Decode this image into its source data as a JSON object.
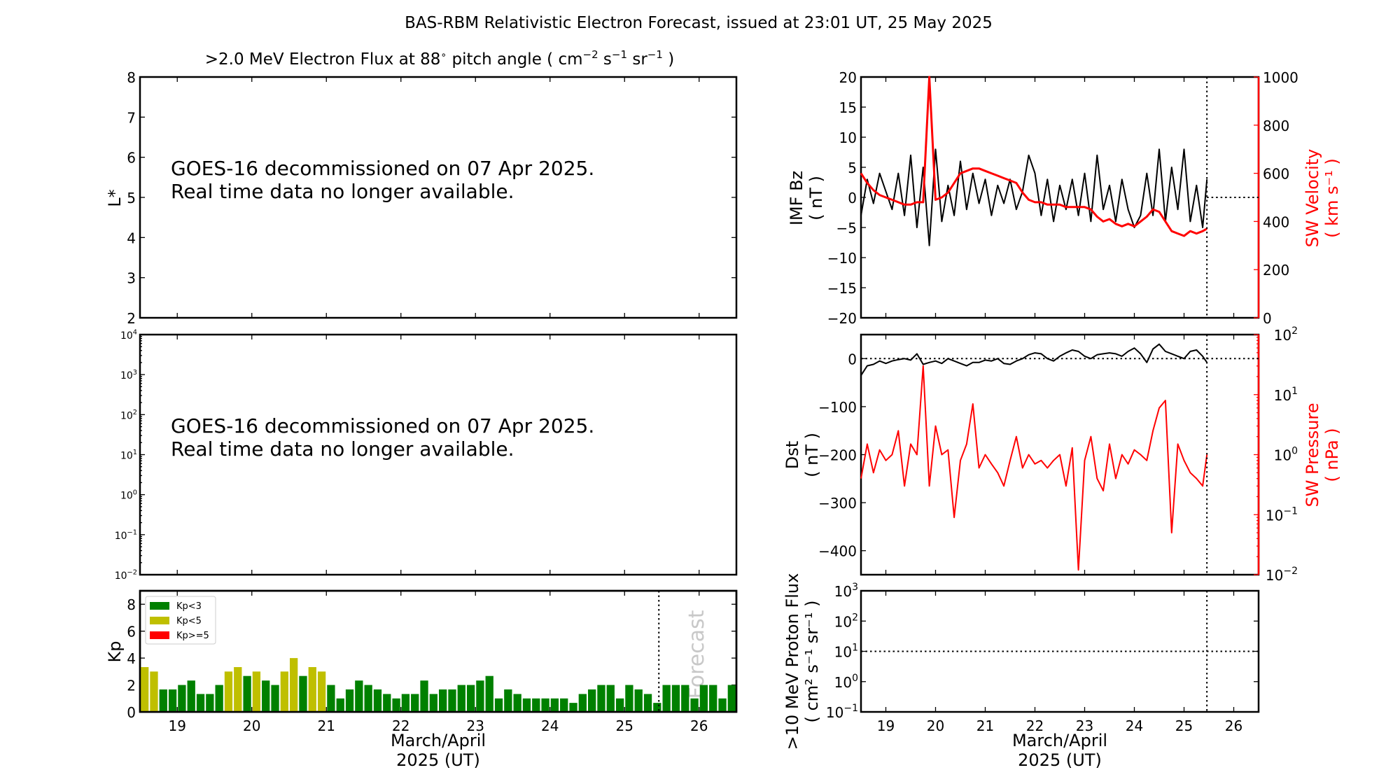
{
  "title": "BAS-RBM Relativistic Electron Forecast, issued at 23:01 UT, 25 May 2025",
  "colors": {
    "kp_low": "#008000",
    "kp_mid": "#bfbf00",
    "kp_high": "#ff0000",
    "secondary_axis": "#ff0000",
    "forecast_text": "#c8c8c8"
  },
  "xaxis": {
    "range": [
      18.5,
      26.5
    ],
    "ticks": [
      "19",
      "20",
      "21",
      "22",
      "23",
      "24",
      "25",
      "26"
    ],
    "label_line1": "March/April",
    "label_line2": "2025 (UT)",
    "issue_time": 25.46
  },
  "chart_data": [
    {
      "type": "heatmap",
      "title": ">2.0 MeV Electron Flux at 88° pitch angle ( cm⁻² s⁻¹ sr⁻¹ )",
      "title_parts": {
        "main": ">2.0 MeV Electron Flux at 88",
        "deg": "∘",
        "pa": " pitch angle ( cm",
        "e1": "−2",
        "s": " s",
        "e2": "−1",
        "sr": " sr",
        "e3": "−1",
        "close": " )"
      },
      "ylabel": "L*",
      "ylim": [
        2,
        8
      ],
      "yticks": [
        "2",
        "3",
        "4",
        "5",
        "6",
        "7",
        "8"
      ],
      "message_line1": "GOES-16 decommissioned on 07 Apr 2025.",
      "message_line2": "Real time data no longer available."
    },
    {
      "type": "line",
      "yscale": "log",
      "ylim": [
        0.01,
        10000
      ],
      "yticks_exp": [
        "−2",
        "−1",
        "0",
        "1",
        "2",
        "3",
        "4"
      ],
      "message_line1": "GOES-16 decommissioned on 07 Apr 2025.",
      "message_line2": "Real time data no longer available."
    },
    {
      "type": "bar",
      "ylabel": "Kp",
      "ylim": [
        0,
        9
      ],
      "yticks": [
        "0",
        "2",
        "4",
        "6",
        "8"
      ],
      "legend": {
        "placement": "top-left",
        "entries": [
          "Kp<3",
          "Kp<5",
          "Kp>=5"
        ]
      },
      "forecast_label": "Forecast",
      "x_start": 18.5,
      "bin_days": 0.125,
      "values": [
        3.33,
        3,
        1.67,
        1.67,
        2,
        2.33,
        1.33,
        1.33,
        2,
        3,
        3.33,
        2.67,
        3,
        2.33,
        2,
        3,
        4,
        2.67,
        3.33,
        3,
        2,
        1,
        1.67,
        2.33,
        2,
        1.67,
        1.33,
        1,
        1.33,
        1.33,
        2.33,
        1.33,
        1.67,
        1.67,
        2,
        2,
        2.33,
        2.67,
        1,
        1.67,
        1.33,
        1,
        1,
        1,
        1,
        1,
        0.67,
        1.33,
        1.67,
        2,
        2,
        1,
        2,
        1.67,
        1.33,
        0.67,
        2,
        2,
        2,
        1,
        2,
        2,
        1,
        2
      ]
    },
    {
      "type": "line",
      "ylabel_line1": "IMF Bz",
      "ylabel_line2": "( nT )",
      "ylim": [
        -20,
        20
      ],
      "yticks": [
        "−20",
        "−15",
        "−10",
        "−5",
        "0",
        "5",
        "10",
        "15",
        "20"
      ],
      "y2label_line1": "SW Velocity",
      "y2label_line2": "( km s⁻¹ )",
      "y2lim": [
        0,
        1000
      ],
      "y2ticks": [
        "0",
        "200",
        "400",
        "600",
        "800",
        "1000"
      ],
      "x": [
        18.5,
        18.625,
        18.75,
        18.875,
        19,
        19.125,
        19.25,
        19.375,
        19.5,
        19.625,
        19.75,
        19.875,
        20,
        20.125,
        20.25,
        20.375,
        20.5,
        20.625,
        20.75,
        20.875,
        21,
        21.125,
        21.25,
        21.375,
        21.5,
        21.625,
        21.75,
        21.875,
        22,
        22.125,
        22.25,
        22.375,
        22.5,
        22.625,
        22.75,
        22.875,
        23,
        23.125,
        23.25,
        23.375,
        23.5,
        23.625,
        23.75,
        23.875,
        24,
        24.125,
        24.25,
        24.375,
        24.5,
        24.625,
        24.75,
        24.875,
        25,
        25.125,
        25.25,
        25.375,
        25.46
      ],
      "series": [
        {
          "name": "IMF Bz",
          "color": "#000000",
          "values": [
            -3,
            3,
            -1,
            4,
            1,
            -2,
            4,
            -3,
            7,
            -5,
            5,
            -8,
            8,
            -4,
            2,
            -3,
            6,
            -2,
            4,
            -1,
            3,
            -3,
            2,
            -1,
            3,
            -2,
            1,
            7,
            4,
            -3,
            3,
            -4,
            2,
            -2,
            3,
            -3,
            4,
            -4,
            7,
            -2,
            2,
            -4,
            3,
            -2,
            -5,
            -3,
            4,
            -3,
            8,
            -4,
            5,
            -2,
            8,
            -4,
            2,
            -5,
            3
          ]
        },
        {
          "name": "SW Velocity",
          "color": "#ff0000",
          "axis": "right",
          "values": [
            600,
            560,
            530,
            510,
            500,
            490,
            480,
            470,
            470,
            480,
            480,
            1000,
            490,
            500,
            520,
            560,
            600,
            610,
            620,
            620,
            610,
            600,
            590,
            580,
            570,
            560,
            520,
            490,
            480,
            480,
            470,
            470,
            470,
            460,
            460,
            460,
            460,
            450,
            420,
            400,
            410,
            390,
            380,
            390,
            380,
            400,
            420,
            450,
            440,
            400,
            360,
            350,
            340,
            360,
            350,
            360,
            370
          ]
        }
      ]
    },
    {
      "type": "line",
      "ylabel_line1": "Dst",
      "ylabel_line2": "( nT )",
      "ylim": [
        -450,
        50
      ],
      "yticks": [
        {
          "v": 0,
          "t": "0"
        },
        {
          "v": -100,
          "t": "−100"
        },
        {
          "v": -200,
          "t": "−200"
        },
        {
          "v": -300,
          "t": "−300"
        },
        {
          "v": -400,
          "t": "−400"
        }
      ],
      "y2label_line1": "SW Pressure",
      "y2label_line2": "( nPa )",
      "y2scale": "log",
      "y2lim": [
        0.01,
        100
      ],
      "y2ticks_exp": [
        "−2",
        "−1",
        "0",
        "1",
        "2"
      ],
      "x": [
        18.5,
        18.625,
        18.75,
        18.875,
        19,
        19.125,
        19.25,
        19.375,
        19.5,
        19.625,
        19.75,
        19.875,
        20,
        20.125,
        20.25,
        20.375,
        20.5,
        20.625,
        20.75,
        20.875,
        21,
        21.125,
        21.25,
        21.375,
        21.5,
        21.625,
        21.75,
        21.875,
        22,
        22.125,
        22.25,
        22.375,
        22.5,
        22.625,
        22.75,
        22.875,
        23,
        23.125,
        23.25,
        23.375,
        23.5,
        23.625,
        23.75,
        23.875,
        24,
        24.125,
        24.25,
        24.375,
        24.5,
        24.625,
        24.75,
        24.875,
        25,
        25.125,
        25.25,
        25.375,
        25.46
      ],
      "series": [
        {
          "name": "Dst",
          "color": "#000000",
          "values": [
            -35,
            -15,
            -12,
            -5,
            -10,
            -5,
            -2,
            0,
            -3,
            10,
            -12,
            -8,
            -5,
            -10,
            0,
            -5,
            -10,
            -15,
            -8,
            -8,
            -3,
            -5,
            0,
            -10,
            -12,
            -5,
            0,
            8,
            12,
            10,
            0,
            -5,
            5,
            12,
            18,
            15,
            5,
            0,
            8,
            10,
            12,
            10,
            5,
            15,
            22,
            10,
            -8,
            20,
            30,
            15,
            10,
            5,
            0,
            15,
            18,
            5,
            -8
          ]
        },
        {
          "name": "SW Pressure",
          "color": "#ff0000",
          "axis": "right",
          "values": [
            0.4,
            1.5,
            0.5,
            1.2,
            0.8,
            1.0,
            2.5,
            0.3,
            1.5,
            1.0,
            30,
            0.3,
            3,
            1.0,
            1.2,
            0.09,
            0.8,
            1.5,
            7,
            0.6,
            1.0,
            0.7,
            0.5,
            0.3,
            0.8,
            2,
            0.6,
            1.0,
            0.7,
            0.8,
            0.6,
            0.8,
            1.0,
            0.3,
            1.3,
            0.012,
            0.8,
            2,
            0.4,
            0.25,
            1.5,
            0.4,
            1.0,
            0.7,
            1.2,
            1.0,
            0.8,
            2.5,
            6,
            8,
            0.05,
            1.5,
            0.8,
            0.5,
            0.4,
            0.3,
            1.0
          ]
        }
      ]
    },
    {
      "type": "line",
      "yscale": "log",
      "ylabel_line1": ">10 MeV Proton Flux",
      "ylabel_line2": "( cm² s⁻¹ sr⁻¹ )",
      "ylim": [
        0.1,
        1000
      ],
      "yticks_exp": [
        "−1",
        "0",
        "1",
        "2",
        "3"
      ],
      "threshold": 10
    }
  ]
}
